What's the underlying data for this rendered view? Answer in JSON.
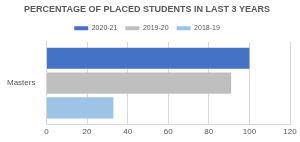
{
  "chart_data": {
    "type": "bar",
    "orientation": "horizontal",
    "title": "PERCENTAGE OF PLACED STUDENTS IN LAST 3 YEARS",
    "categories": [
      "Masters"
    ],
    "series": [
      {
        "name": "2020-21",
        "color": "#4472c4",
        "values": [
          100
        ]
      },
      {
        "name": "2019-20",
        "color": "#bfbfbf",
        "values": [
          91
        ]
      },
      {
        "name": "2018-19",
        "color": "#9dc3e6",
        "values": [
          33
        ]
      }
    ],
    "xlim": [
      0,
      120
    ],
    "xticks": [
      0,
      20,
      40,
      60,
      80,
      100,
      120
    ],
    "grid": true,
    "legend": "top"
  }
}
